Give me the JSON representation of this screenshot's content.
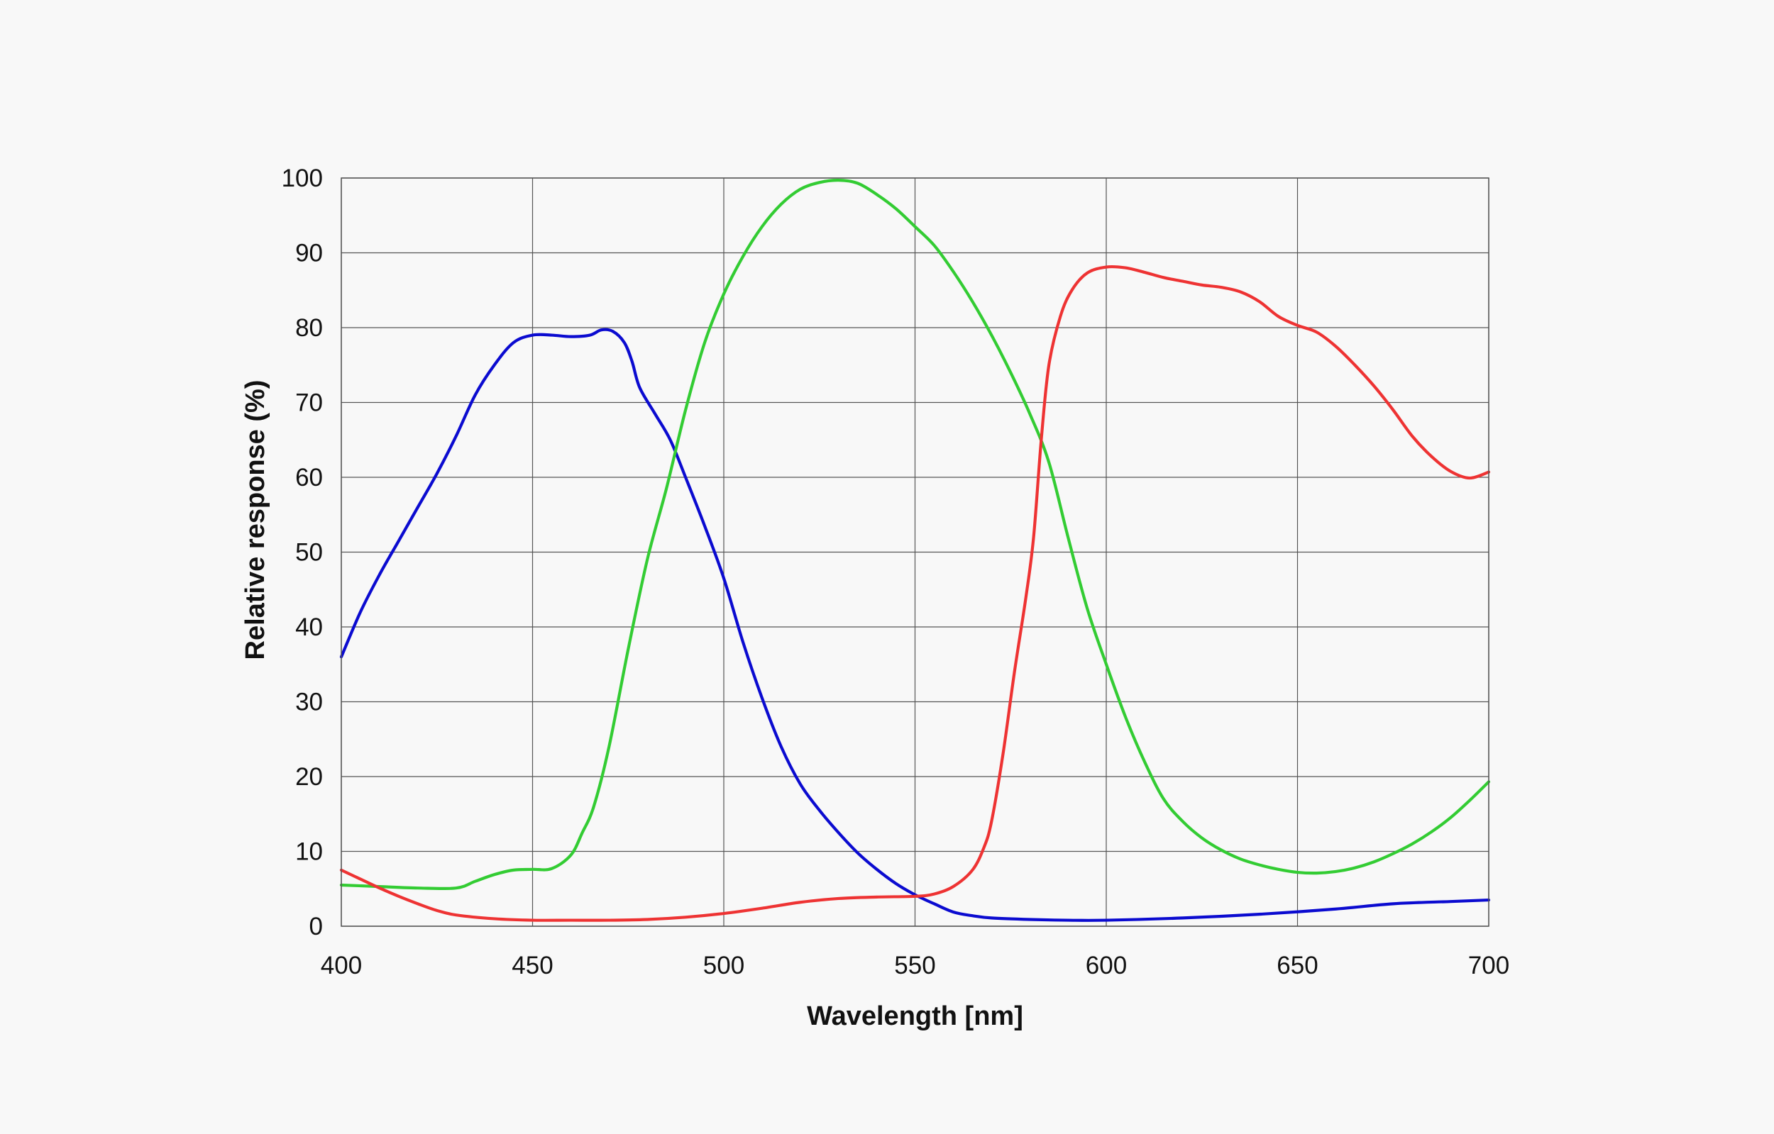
{
  "chart_data": {
    "type": "line",
    "title": "",
    "xlabel": "Wavelength [nm]",
    "ylabel": "Relative response  (%)",
    "xlim": [
      400,
      700
    ],
    "ylim": [
      0,
      100
    ],
    "x_ticks": [
      400,
      450,
      500,
      550,
      600,
      650,
      700
    ],
    "y_ticks": [
      0,
      10,
      20,
      30,
      40,
      50,
      60,
      70,
      80,
      90,
      100
    ],
    "grid": true,
    "legend": "none",
    "series": [
      {
        "color": "#0b0bd0",
        "points": [
          [
            400,
            36
          ],
          [
            405,
            42
          ],
          [
            410,
            47
          ],
          [
            415,
            51.5
          ],
          [
            420,
            56
          ],
          [
            425,
            60.5
          ],
          [
            430,
            65.5
          ],
          [
            435,
            71
          ],
          [
            440,
            75
          ],
          [
            445,
            78
          ],
          [
            450,
            79
          ],
          [
            455,
            79
          ],
          [
            460,
            78.8
          ],
          [
            465,
            79
          ],
          [
            468,
            79.7
          ],
          [
            471,
            79.5
          ],
          [
            474,
            78
          ],
          [
            476,
            75.5
          ],
          [
            478,
            72
          ],
          [
            482,
            68.5
          ],
          [
            486,
            65
          ],
          [
            490,
            60
          ],
          [
            495,
            53.5
          ],
          [
            500,
            46.5
          ],
          [
            505,
            38
          ],
          [
            510,
            30.5
          ],
          [
            515,
            24
          ],
          [
            520,
            19
          ],
          [
            525,
            15.5
          ],
          [
            530,
            12.5
          ],
          [
            535,
            9.8
          ],
          [
            540,
            7.6
          ],
          [
            545,
            5.7
          ],
          [
            550,
            4.2
          ],
          [
            555,
            3
          ],
          [
            560,
            1.9
          ],
          [
            565,
            1.4
          ],
          [
            570,
            1.1
          ],
          [
            580,
            0.9
          ],
          [
            590,
            0.8
          ],
          [
            600,
            0.8
          ],
          [
            620,
            1.1
          ],
          [
            640,
            1.6
          ],
          [
            660,
            2.3
          ],
          [
            675,
            3
          ],
          [
            690,
            3.3
          ],
          [
            700,
            3.5
          ]
        ]
      },
      {
        "color": "#33cc33",
        "points": [
          [
            400,
            5.5
          ],
          [
            410,
            5.3
          ],
          [
            420,
            5.1
          ],
          [
            430,
            5.1
          ],
          [
            435,
            6
          ],
          [
            440,
            6.9
          ],
          [
            445,
            7.5
          ],
          [
            450,
            7.6
          ],
          [
            455,
            7.7
          ],
          [
            460,
            9.5
          ],
          [
            463,
            12.5
          ],
          [
            466,
            16
          ],
          [
            470,
            24
          ],
          [
            475,
            37
          ],
          [
            480,
            49
          ],
          [
            485,
            58.5
          ],
          [
            490,
            69
          ],
          [
            495,
            78
          ],
          [
            500,
            84.5
          ],
          [
            505,
            89.5
          ],
          [
            510,
            93.5
          ],
          [
            515,
            96.5
          ],
          [
            520,
            98.5
          ],
          [
            525,
            99.4
          ],
          [
            530,
            99.7
          ],
          [
            535,
            99.3
          ],
          [
            540,
            97.8
          ],
          [
            545,
            95.9
          ],
          [
            550,
            93.5
          ],
          [
            555,
            91
          ],
          [
            560,
            87.5
          ],
          [
            565,
            83.5
          ],
          [
            570,
            79
          ],
          [
            575,
            74
          ],
          [
            580,
            68.5
          ],
          [
            585,
            62
          ],
          [
            590,
            52
          ],
          [
            595,
            42.5
          ],
          [
            600,
            35
          ],
          [
            605,
            28
          ],
          [
            610,
            22
          ],
          [
            615,
            17
          ],
          [
            620,
            14
          ],
          [
            625,
            11.8
          ],
          [
            630,
            10.2
          ],
          [
            635,
            9
          ],
          [
            640,
            8.2
          ],
          [
            645,
            7.6
          ],
          [
            650,
            7.2
          ],
          [
            655,
            7.1
          ],
          [
            660,
            7.3
          ],
          [
            665,
            7.8
          ],
          [
            670,
            8.6
          ],
          [
            675,
            9.7
          ],
          [
            680,
            11
          ],
          [
            685,
            12.6
          ],
          [
            690,
            14.5
          ],
          [
            695,
            16.8
          ],
          [
            700,
            19.3
          ]
        ]
      },
      {
        "color": "#ee3333",
        "points": [
          [
            400,
            7.5
          ],
          [
            405,
            6.3
          ],
          [
            410,
            5.1
          ],
          [
            415,
            4
          ],
          [
            420,
            3
          ],
          [
            425,
            2.1
          ],
          [
            430,
            1.5
          ],
          [
            440,
            1
          ],
          [
            450,
            0.8
          ],
          [
            460,
            0.8
          ],
          [
            470,
            0.8
          ],
          [
            480,
            0.9
          ],
          [
            490,
            1.2
          ],
          [
            500,
            1.7
          ],
          [
            510,
            2.4
          ],
          [
            520,
            3.2
          ],
          [
            530,
            3.7
          ],
          [
            540,
            3.9
          ],
          [
            550,
            4
          ],
          [
            555,
            4.3
          ],
          [
            560,
            5.3
          ],
          [
            565,
            7.5
          ],
          [
            568,
            10.5
          ],
          [
            570,
            14
          ],
          [
            573,
            23
          ],
          [
            576,
            34
          ],
          [
            579,
            44
          ],
          [
            581,
            52
          ],
          [
            583,
            65
          ],
          [
            585,
            75
          ],
          [
            588,
            81.5
          ],
          [
            591,
            85
          ],
          [
            595,
            87.3
          ],
          [
            600,
            88.1
          ],
          [
            605,
            88
          ],
          [
            610,
            87.4
          ],
          [
            615,
            86.7
          ],
          [
            620,
            86.2
          ],
          [
            625,
            85.7
          ],
          [
            630,
            85.4
          ],
          [
            635,
            84.8
          ],
          [
            640,
            83.5
          ],
          [
            645,
            81.5
          ],
          [
            650,
            80.3
          ],
          [
            655,
            79.4
          ],
          [
            660,
            77.5
          ],
          [
            665,
            75
          ],
          [
            670,
            72.2
          ],
          [
            675,
            69
          ],
          [
            680,
            65.5
          ],
          [
            685,
            62.8
          ],
          [
            690,
            60.8
          ],
          [
            695,
            59.9
          ],
          [
            700,
            60.7
          ]
        ]
      }
    ]
  }
}
